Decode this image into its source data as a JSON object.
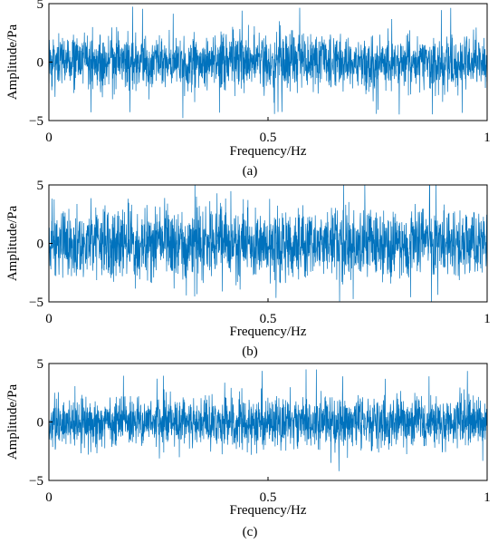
{
  "chart_data": [
    {
      "type": "line",
      "caption": "(a)",
      "xlabel": "Frequency/Hz",
      "ylabel": "Amplitude/Pa",
      "xlim": [
        0,
        1
      ],
      "ylim": [
        -5,
        5
      ],
      "xticks": [
        "0",
        "0.5",
        "1"
      ],
      "yticks": [
        "5",
        "0",
        "−5"
      ],
      "grid": false,
      "series": [
        {
          "style": "dense noise",
          "color": "#0072bd",
          "seed": 11,
          "core_amplitude": 2.1,
          "peak_amplitude": 4.8,
          "sample_count": 2000
        }
      ]
    },
    {
      "type": "line",
      "caption": "(b)",
      "xlabel": "Frequency/Hz",
      "ylabel": "Amplitude/Pa",
      "xlim": [
        0,
        1
      ],
      "ylim": [
        -5,
        5
      ],
      "xticks": [
        "0",
        "0.5",
        "1"
      ],
      "yticks": [
        "5",
        "0",
        "−5"
      ],
      "grid": false,
      "series": [
        {
          "style": "dense noise",
          "color": "#0072bd",
          "seed": 23,
          "core_amplitude": 2.6,
          "peak_amplitude": 5.0,
          "sample_count": 2000
        }
      ]
    },
    {
      "type": "line",
      "caption": "(c)",
      "xlabel": "Frequency/Hz",
      "ylabel": "Amplitude/Pa",
      "xlim": [
        0,
        1
      ],
      "ylim": [
        -5,
        5
      ],
      "xticks": [
        "0",
        "0.5",
        "1"
      ],
      "yticks": [
        "5",
        "0",
        "−5"
      ],
      "grid": false,
      "series": [
        {
          "style": "dense noise",
          "color": "#0072bd",
          "seed": 37,
          "core_amplitude": 2.0,
          "peak_amplitude": 4.6,
          "sample_count": 2000
        }
      ]
    }
  ]
}
